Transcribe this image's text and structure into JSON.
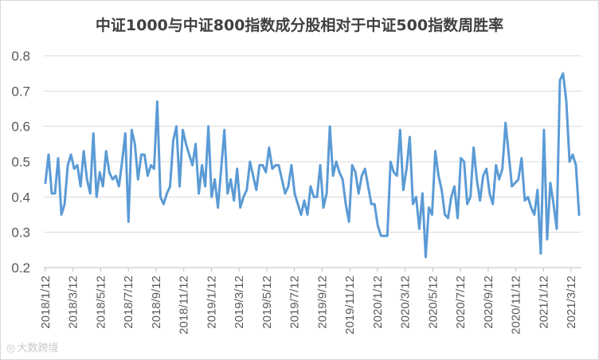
{
  "chart_data": {
    "type": "line",
    "title": "中证1000与中证800指数成分股相对于中证500指数周胜率",
    "xlabel": "",
    "ylabel": "",
    "ylim": [
      0.2,
      0.8
    ],
    "yticks": [
      "0.2",
      "0.3",
      "0.4",
      "0.5",
      "0.6",
      "0.7",
      "0.8"
    ],
    "xtick_labels": [
      "2018/1/12",
      "2018/3/12",
      "2018/5/12",
      "2018/7/12",
      "2018/9/12",
      "2018/11/12",
      "2019/1/12",
      "2019/3/12",
      "2019/5/12",
      "2019/7/12",
      "2019/9/12",
      "2019/11/12",
      "2020/1/12",
      "2020/3/12",
      "2020/5/12",
      "2020/7/12",
      "2020/9/12",
      "2020/11/12",
      "2021/1/12",
      "2021/3/12"
    ],
    "grid": true,
    "legend": "none",
    "line_color": "#5b9bd5",
    "series": [
      {
        "name": "",
        "values": [
          0.44,
          0.52,
          0.41,
          0.41,
          0.51,
          0.35,
          0.38,
          0.49,
          0.52,
          0.48,
          0.49,
          0.43,
          0.53,
          0.45,
          0.41,
          0.58,
          0.4,
          0.47,
          0.43,
          0.53,
          0.47,
          0.45,
          0.46,
          0.43,
          0.5,
          0.58,
          0.33,
          0.59,
          0.55,
          0.45,
          0.52,
          0.52,
          0.46,
          0.49,
          0.48,
          0.67,
          0.4,
          0.38,
          0.41,
          0.43,
          0.56,
          0.6,
          0.43,
          0.59,
          0.55,
          0.52,
          0.49,
          0.55,
          0.41,
          0.49,
          0.43,
          0.6,
          0.4,
          0.45,
          0.37,
          0.48,
          0.59,
          0.41,
          0.45,
          0.39,
          0.48,
          0.37,
          0.4,
          0.42,
          0.5,
          0.46,
          0.42,
          0.49,
          0.49,
          0.47,
          0.54,
          0.48,
          0.49,
          0.49,
          0.45,
          0.41,
          0.43,
          0.49,
          0.41,
          0.38,
          0.35,
          0.39,
          0.35,
          0.43,
          0.4,
          0.4,
          0.49,
          0.37,
          0.41,
          0.6,
          0.46,
          0.5,
          0.47,
          0.45,
          0.38,
          0.33,
          0.49,
          0.47,
          0.41,
          0.46,
          0.48,
          0.43,
          0.38,
          0.38,
          0.32,
          0.29,
          0.29,
          0.29,
          0.5,
          0.47,
          0.46,
          0.59,
          0.42,
          0.48,
          0.57,
          0.38,
          0.4,
          0.31,
          0.41,
          0.23,
          0.37,
          0.35,
          0.53,
          0.46,
          0.42,
          0.35,
          0.34,
          0.4,
          0.43,
          0.34,
          0.51,
          0.5,
          0.38,
          0.4,
          0.54,
          0.45,
          0.39,
          0.46,
          0.48,
          0.41,
          0.38,
          0.49,
          0.45,
          0.48,
          0.61,
          0.52,
          0.43,
          0.44,
          0.45,
          0.51,
          0.39,
          0.4,
          0.37,
          0.35,
          0.42,
          0.24,
          0.59,
          0.28,
          0.44,
          0.38,
          0.31,
          0.73,
          0.75,
          0.67,
          0.5,
          0.52,
          0.49,
          0.35
        ]
      }
    ]
  },
  "watermark": {
    "icon": "camera-icon",
    "text": "大数跨境"
  }
}
